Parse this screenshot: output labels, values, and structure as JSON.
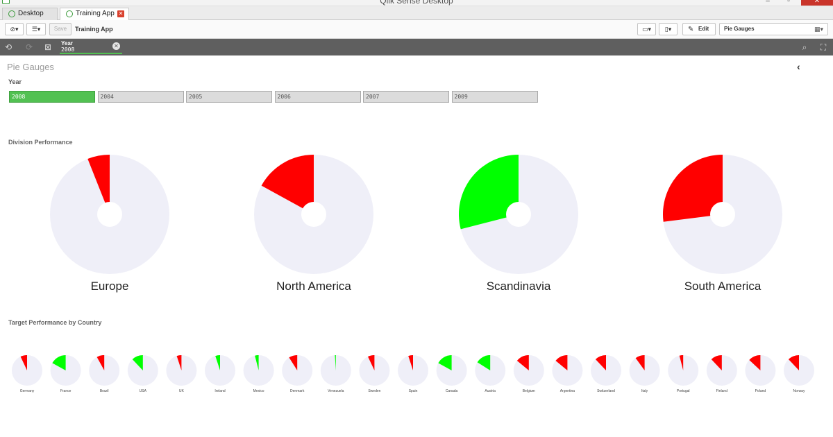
{
  "window": {
    "title": "Qlik Sense Desktop"
  },
  "tabs": [
    {
      "label": "Desktop hub"
    },
    {
      "label": "Training App"
    }
  ],
  "toolbar": {
    "save_label": "Save",
    "app_name": "Training App",
    "edit_label": "Edit",
    "sheet_name": "Pie Gauges"
  },
  "selections": {
    "field": "Year",
    "value": "2008"
  },
  "sheet": {
    "title": "Pie Gauges",
    "year_label": "Year",
    "years": [
      "2008",
      "2004",
      "2005",
      "2006",
      "2007",
      "2009"
    ],
    "selected_year": "2008"
  },
  "colors": {
    "good": "#00ff00",
    "bad": "#ff0000",
    "track": "#efeff8",
    "selected": "#52c152"
  },
  "chart_data": [
    {
      "type": "pie",
      "title": "Division Performance",
      "categories": [
        "Europe",
        "North America",
        "Scandinavia",
        "South America"
      ],
      "values": [
        0.06,
        0.17,
        0.29,
        0.27
      ],
      "status": [
        "bad",
        "bad",
        "good",
        "bad"
      ]
    },
    {
      "type": "pie",
      "title": "Target Performance by Country",
      "categories": [
        "Germany",
        "France",
        "Brazil",
        "USA",
        "UK",
        "Ireland",
        "Mexico",
        "Denmark",
        "Venezuela",
        "Sweden",
        "Spain",
        "Canada",
        "Austria",
        "Belgium",
        "Argentina",
        "Switzerland",
        "Italy",
        "Portugal",
        "Finland",
        "Poland",
        "Norway"
      ],
      "values": [
        0.07,
        0.17,
        0.08,
        0.12,
        0.05,
        0.05,
        0.04,
        0.09,
        0.01,
        0.07,
        0.05,
        0.17,
        0.16,
        0.14,
        0.14,
        0.12,
        0.1,
        0.04,
        0.12,
        0.13,
        0.12
      ],
      "status": [
        "bad",
        "good",
        "bad",
        "good",
        "bad",
        "good",
        "good",
        "bad",
        "good",
        "bad",
        "bad",
        "good",
        "good",
        "bad",
        "bad",
        "bad",
        "bad",
        "bad",
        "bad",
        "bad",
        "bad"
      ]
    }
  ]
}
